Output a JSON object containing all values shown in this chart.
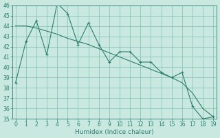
{
  "xlabel": "Humidex (Indice chaleur)",
  "x_main": [
    0,
    1,
    2,
    3,
    4,
    5,
    6,
    7,
    8,
    9,
    10,
    11,
    12,
    13,
    14,
    15,
    16,
    17,
    18,
    19
  ],
  "y_main": [
    38.5,
    42.5,
    44.5,
    41.2,
    46.2,
    45.2,
    42.2,
    44.3,
    42.2,
    40.5,
    41.5,
    41.5,
    40.5,
    40.5,
    39.5,
    39.0,
    39.5,
    36.2,
    35.0,
    35.2
  ],
  "x_trend": [
    0,
    1,
    2,
    3,
    4,
    5,
    6,
    7,
    8,
    9,
    10,
    11,
    12,
    13,
    14,
    15,
    16,
    17,
    18,
    19
  ],
  "y_trend": [
    44.0,
    44.0,
    43.8,
    43.5,
    43.2,
    42.8,
    42.5,
    42.2,
    41.8,
    41.4,
    41.0,
    40.6,
    40.2,
    39.8,
    39.4,
    39.0,
    38.5,
    37.5,
    36.0,
    35.2
  ],
  "line_color": "#2d7d6f",
  "bg_color": "#c8e8e0",
  "grid_color": "#7fbfb0",
  "ylim": [
    35,
    46
  ],
  "xlim": [
    -0.3,
    19.3
  ],
  "yticks": [
    35,
    36,
    37,
    38,
    39,
    40,
    41,
    42,
    43,
    44,
    45,
    46
  ],
  "xticks": [
    0,
    1,
    2,
    3,
    4,
    5,
    6,
    7,
    8,
    9,
    10,
    11,
    12,
    13,
    14,
    15,
    16,
    17,
    18,
    19
  ],
  "tick_fontsize": 5.5,
  "xlabel_fontsize": 6.5
}
